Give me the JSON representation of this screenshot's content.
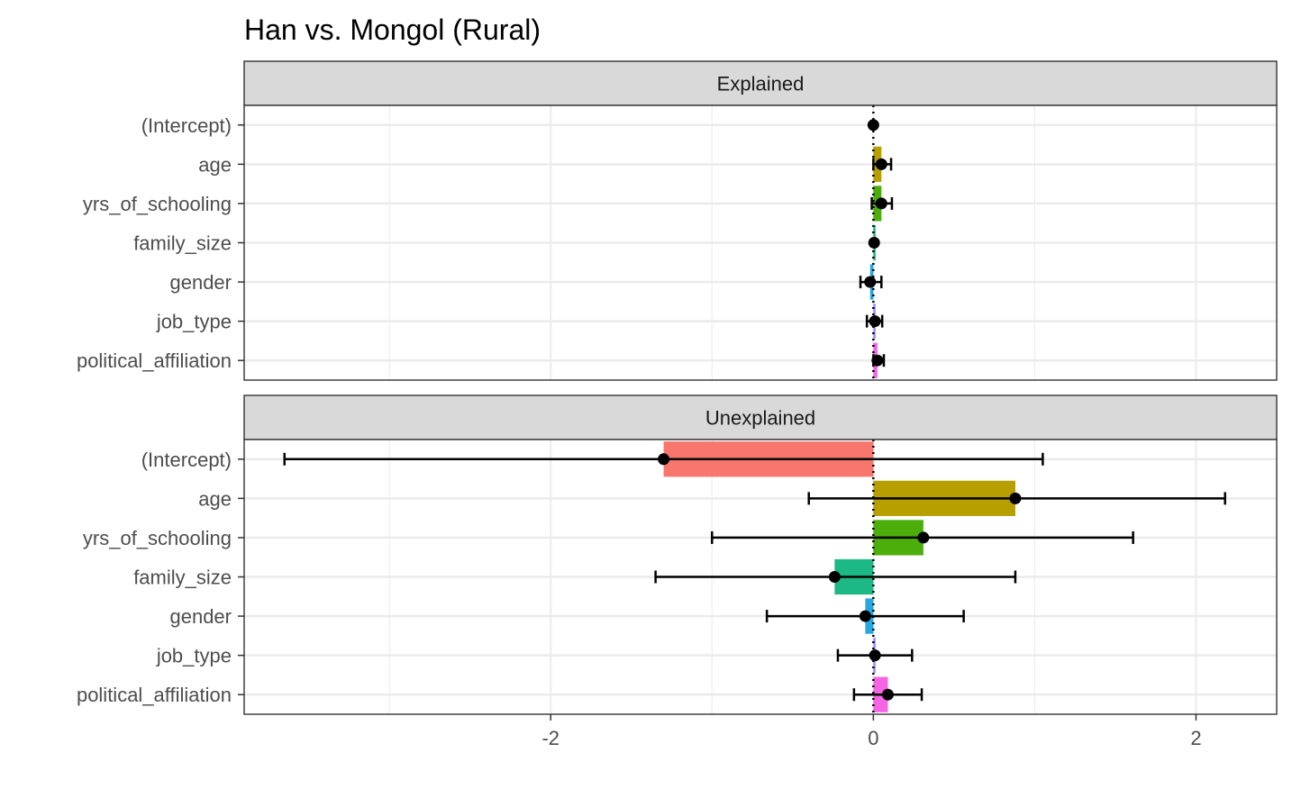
{
  "chart_data": {
    "type": "bar",
    "title": "Han vs. Mongol (Rural)",
    "categories": [
      "(Intercept)",
      "age",
      "yrs_of_schooling",
      "family_size",
      "gender",
      "job_type",
      "political_affiliation"
    ],
    "xlim": [
      -3.9,
      2.5
    ],
    "x_ticks": [
      -2,
      0,
      2
    ],
    "x_tick_labels": [
      "-2",
      "0",
      "2"
    ],
    "xlabel": "",
    "ylabel": "",
    "colors": [
      "#F8766D",
      "#B79F00",
      "#4BAE0A",
      "#1CB886",
      "#26A7E0",
      "#9A8FFF",
      "#F564E3"
    ],
    "reference_line": 0,
    "panels": [
      {
        "name": "Explained",
        "values": [
          0.0,
          0.05,
          0.05,
          0.005,
          -0.02,
          0.01,
          0.025
        ],
        "ci_low": [
          0.0,
          0.0,
          -0.01,
          0.005,
          -0.08,
          -0.04,
          0.0
        ],
        "ci_high": [
          0.0,
          0.11,
          0.115,
          0.005,
          0.05,
          0.055,
          0.065
        ]
      },
      {
        "name": "Unexplained",
        "values": [
          -1.3,
          0.88,
          0.31,
          -0.24,
          -0.05,
          0.01,
          0.09
        ],
        "ci_low": [
          -3.65,
          -0.4,
          -1.0,
          -1.35,
          -0.66,
          -0.22,
          -0.12
        ],
        "ci_high": [
          1.05,
          2.18,
          1.61,
          0.88,
          0.56,
          0.24,
          0.3
        ]
      }
    ]
  }
}
